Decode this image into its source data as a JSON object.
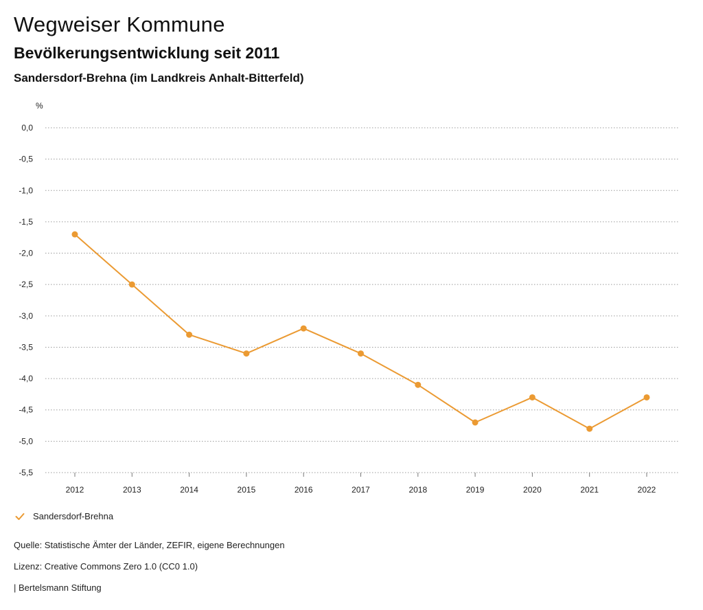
{
  "header": {
    "title": "Wegweiser Kommune",
    "subtitle": "Bevölkerungsentwicklung seit 2011",
    "region": "Sandersdorf-Brehna (im Landkreis Anhalt-Bitterfeld)"
  },
  "chart_data": {
    "type": "line",
    "ylabel": "%",
    "xlabel": "",
    "ylim": [
      -5.5,
      0.0
    ],
    "yticks": [
      0.0,
      -0.5,
      -1.0,
      -1.5,
      -2.0,
      -2.5,
      -3.0,
      -3.5,
      -4.0,
      -4.5,
      -5.0,
      -5.5
    ],
    "ytick_labels": [
      "0,0",
      "-0,5",
      "-1,0",
      "-1,5",
      "-2,0",
      "-2,5",
      "-3,0",
      "-3,5",
      "-4,0",
      "-4,5",
      "-5,0",
      "-5,5"
    ],
    "categories": [
      "2012",
      "2013",
      "2014",
      "2015",
      "2016",
      "2017",
      "2018",
      "2019",
      "2020",
      "2021",
      "2022"
    ],
    "grid": true,
    "legend_position": "bottom-left",
    "series": [
      {
        "name": "Sandersdorf-Brehna",
        "color": "#EB9A32",
        "values": [
          -1.7,
          -2.5,
          -3.3,
          -3.6,
          -3.2,
          -3.6,
          -4.1,
          -4.7,
          -4.3,
          -4.8,
          -4.3
        ]
      }
    ]
  },
  "footer": {
    "source": "Quelle: Statistische Ämter der Länder, ZEFIR, eigene Berechnungen",
    "license": "Lizenz: Creative Commons Zero 1.0 (CC0 1.0)",
    "brand": "| Bertelsmann Stiftung"
  }
}
